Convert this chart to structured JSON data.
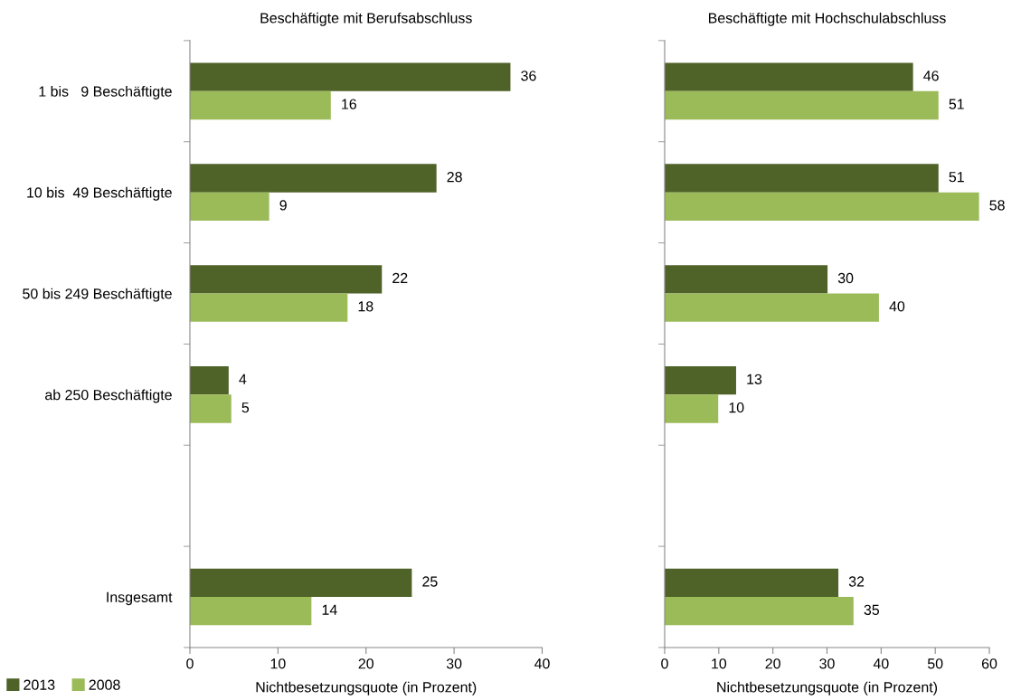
{
  "chart_data": [
    {
      "type": "bar",
      "orientation": "horizontal",
      "title": "Beschäftigte mit Berufsabschluss",
      "xlabel": "Nichtbesetzungsquote (in Prozent)",
      "categories": [
        "1 bis   9 Beschäftigte",
        "10 bis  49 Beschäftigte",
        "50 bis 249 Beschäftigte",
        "ab 250 Beschäftigte",
        null,
        "Insgesamt"
      ],
      "series": [
        {
          "name": "2013",
          "color": "#4f6228",
          "values": [
            36.4,
            28.0,
            21.8,
            4.4,
            null,
            25.2
          ],
          "value_labels": [
            "36",
            "28",
            "22",
            "4",
            null,
            "25"
          ]
        },
        {
          "name": "2008",
          "color": "#9bbb59",
          "values": [
            16.0,
            9.0,
            17.9,
            4.7,
            null,
            13.8
          ],
          "value_labels": [
            "16",
            "9",
            "18",
            "5",
            null,
            "14"
          ]
        }
      ],
      "xlim": [
        0,
        40
      ],
      "xticks": [
        0,
        10,
        20,
        30,
        40
      ],
      "grid": false,
      "legend": "bottom left"
    },
    {
      "type": "bar",
      "orientation": "horizontal",
      "title": "Beschäftigte mit Hochschulabschluss",
      "xlabel": "Nichtbesetzungsquote (in Prozent)",
      "categories": [
        null,
        null,
        null,
        null,
        null,
        null
      ],
      "series": [
        {
          "name": "2013",
          "color": "#4f6228",
          "values": [
            45.9,
            50.6,
            30.1,
            13.2,
            null,
            32.1
          ],
          "value_labels": [
            "46",
            "51",
            "30",
            "13",
            null,
            "32"
          ]
        },
        {
          "name": "2008",
          "color": "#9bbb59",
          "values": [
            50.6,
            58.1,
            39.6,
            9.9,
            null,
            34.9
          ],
          "value_labels": [
            "51",
            "58",
            "40",
            "10",
            null,
            "35"
          ]
        }
      ],
      "xlim": [
        0,
        60
      ],
      "xticks": [
        0,
        10,
        20,
        30,
        40,
        50,
        60
      ],
      "grid": false,
      "tick_labels": "x"
    }
  ]
}
